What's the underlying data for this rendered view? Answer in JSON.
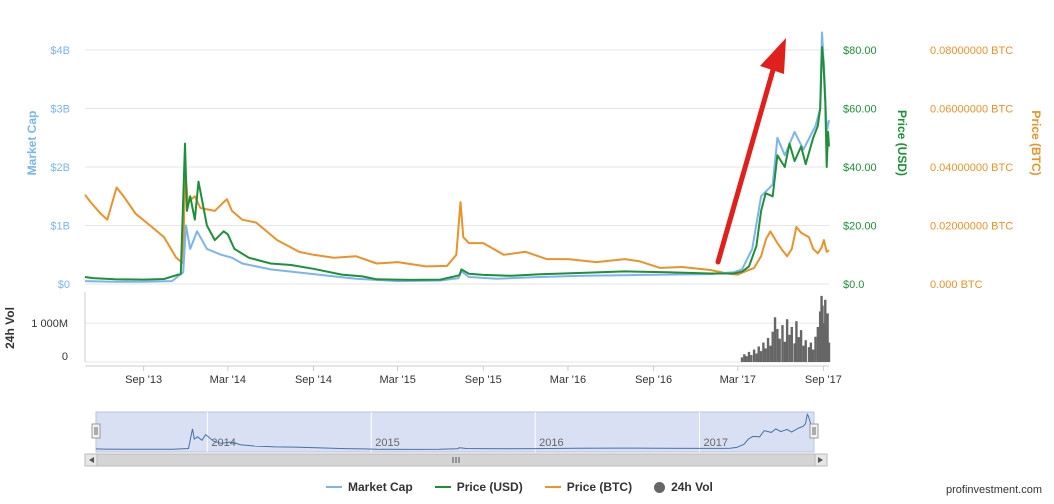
{
  "chart_data": {
    "type": "line",
    "x_ticks": [
      "Sep '13",
      "Mar '14",
      "Sep '14",
      "Mar '15",
      "Sep '15",
      "Mar '16",
      "Sep '16",
      "Mar '17",
      "Sep '17"
    ],
    "axes": {
      "market_cap": {
        "label": "Market Cap",
        "ticks": [
          "$0",
          "$1B",
          "$2B",
          "$3B",
          "$4B"
        ],
        "ylim": [
          0,
          4
        ],
        "unit": "B USD",
        "color": "#7cb5ec"
      },
      "price_usd": {
        "label": "Price (USD)",
        "ticks": [
          "$0.0",
          "$20.00",
          "$40.00",
          "$60.00",
          "$80.00"
        ],
        "ylim": [
          0,
          80
        ],
        "color": "#1f8f3a"
      },
      "price_btc": {
        "label": "Price (BTC)",
        "ticks": [
          "0.000 BTC",
          "0.02000000 BTC",
          "0.04000000 BTC",
          "0.06000000 BTC",
          "0.08000000 BTC"
        ],
        "ylim": [
          0,
          0.08
        ],
        "color": "#e8932b"
      },
      "volume": {
        "label": "24h Vol",
        "ticks": [
          "0",
          "1 000M"
        ],
        "ylim": [
          0,
          1800
        ],
        "unit": "M USD",
        "color": "#666666"
      }
    },
    "series": [
      {
        "name": "Market Cap",
        "color": "#7cb5ec",
        "points": [
          [
            "2013-04-28",
            0.05
          ],
          [
            "2013-07-01",
            0.04
          ],
          [
            "2013-09-01",
            0.04
          ],
          [
            "2013-11-01",
            0.05
          ],
          [
            "2013-11-25",
            0.2
          ],
          [
            "2013-12-01",
            1.0
          ],
          [
            "2013-12-10",
            0.6
          ],
          [
            "2013-12-25",
            0.9
          ],
          [
            "2014-01-15",
            0.6
          ],
          [
            "2014-02-15",
            0.5
          ],
          [
            "2014-03-10",
            0.45
          ],
          [
            "2014-04-01",
            0.35
          ],
          [
            "2014-06-01",
            0.25
          ],
          [
            "2014-09-01",
            0.17
          ],
          [
            "2014-12-01",
            0.09
          ],
          [
            "2015-03-01",
            0.05
          ],
          [
            "2015-06-01",
            0.06
          ],
          [
            "2015-07-10",
            0.1
          ],
          [
            "2015-07-15",
            0.22
          ],
          [
            "2015-08-01",
            0.12
          ],
          [
            "2015-10-01",
            0.09
          ],
          [
            "2016-01-01",
            0.12
          ],
          [
            "2016-04-01",
            0.14
          ],
          [
            "2016-07-01",
            0.15
          ],
          [
            "2016-10-01",
            0.16
          ],
          [
            "2017-01-01",
            0.17
          ],
          [
            "2017-02-20",
            0.2
          ],
          [
            "2017-03-10",
            0.25
          ],
          [
            "2017-04-01",
            0.6
          ],
          [
            "2017-04-20",
            1.5
          ],
          [
            "2017-05-15",
            1.7
          ],
          [
            "2017-05-25",
            2.5
          ],
          [
            "2017-06-10",
            2.2
          ],
          [
            "2017-07-01",
            2.6
          ],
          [
            "2017-07-20",
            2.3
          ],
          [
            "2017-08-15",
            2.7
          ],
          [
            "2017-08-25",
            3.0
          ],
          [
            "2017-08-29",
            4.3
          ],
          [
            "2017-09-03",
            3.6
          ],
          [
            "2017-09-08",
            2.6
          ],
          [
            "2017-09-13",
            2.8
          ]
        ]
      },
      {
        "name": "Price (USD)",
        "color": "#1f8f3a",
        "points": [
          [
            "2013-04-28",
            2.4
          ],
          [
            "2013-05-15",
            2.0
          ],
          [
            "2013-07-01",
            1.6
          ],
          [
            "2013-09-01",
            1.5
          ],
          [
            "2013-10-15",
            1.7
          ],
          [
            "2013-11-20",
            3.5
          ],
          [
            "2013-11-29",
            48
          ],
          [
            "2013-12-03",
            25
          ],
          [
            "2013-12-10",
            30
          ],
          [
            "2013-12-20",
            22
          ],
          [
            "2013-12-28",
            35
          ],
          [
            "2014-01-15",
            20
          ],
          [
            "2014-02-01",
            15
          ],
          [
            "2014-02-20",
            18
          ],
          [
            "2014-03-01",
            17
          ],
          [
            "2014-03-15",
            12
          ],
          [
            "2014-04-15",
            9
          ],
          [
            "2014-06-01",
            7
          ],
          [
            "2014-07-15",
            6.5
          ],
          [
            "2014-09-01",
            5.2
          ],
          [
            "2014-11-01",
            3.2
          ],
          [
            "2014-12-15",
            2.6
          ],
          [
            "2015-01-15",
            1.6
          ],
          [
            "2015-04-01",
            1.4
          ],
          [
            "2015-06-01",
            1.5
          ],
          [
            "2015-07-12",
            3
          ],
          [
            "2015-07-16",
            5
          ],
          [
            "2015-08-01",
            3.5
          ],
          [
            "2015-09-01",
            3.1
          ],
          [
            "2015-11-01",
            2.8
          ],
          [
            "2016-01-01",
            3.3
          ],
          [
            "2016-04-01",
            3.8
          ],
          [
            "2016-07-01",
            4.3
          ],
          [
            "2016-10-01",
            4.0
          ],
          [
            "2017-01-01",
            3.6
          ],
          [
            "2017-02-20",
            3.6
          ],
          [
            "2017-03-10",
            4.2
          ],
          [
            "2017-03-25",
            6
          ],
          [
            "2017-04-10",
            13
          ],
          [
            "2017-04-20",
            25
          ],
          [
            "2017-04-30",
            31
          ],
          [
            "2017-05-15",
            30
          ],
          [
            "2017-05-25",
            44
          ],
          [
            "2017-06-10",
            40
          ],
          [
            "2017-06-20",
            48
          ],
          [
            "2017-07-01",
            42
          ],
          [
            "2017-07-15",
            47
          ],
          [
            "2017-07-25",
            41
          ],
          [
            "2017-08-10",
            50
          ],
          [
            "2017-08-20",
            54
          ],
          [
            "2017-08-25",
            60
          ],
          [
            "2017-08-29",
            81
          ],
          [
            "2017-09-01",
            76
          ],
          [
            "2017-09-05",
            62
          ],
          [
            "2017-09-08",
            40
          ],
          [
            "2017-09-11",
            52
          ],
          [
            "2017-09-13",
            47
          ]
        ]
      },
      {
        "name": "Price (BTC)",
        "color": "#e8932b",
        "points": [
          [
            "2013-04-28",
            0.0305
          ],
          [
            "2013-05-10",
            0.028
          ],
          [
            "2013-06-01",
            0.024
          ],
          [
            "2013-06-15",
            0.022
          ],
          [
            "2013-07-05",
            0.033
          ],
          [
            "2013-07-20",
            0.03
          ],
          [
            "2013-08-15",
            0.024
          ],
          [
            "2013-09-15",
            0.02
          ],
          [
            "2013-10-15",
            0.016
          ],
          [
            "2013-11-10",
            0.009
          ],
          [
            "2013-11-25",
            0.007
          ],
          [
            "2013-11-29",
            0.04
          ],
          [
            "2013-12-05",
            0.028
          ],
          [
            "2013-12-20",
            0.03
          ],
          [
            "2014-01-01",
            0.026
          ],
          [
            "2014-02-01",
            0.025
          ],
          [
            "2014-02-20",
            0.028
          ],
          [
            "2014-02-27",
            0.029
          ],
          [
            "2014-03-10",
            0.025
          ],
          [
            "2014-04-01",
            0.022
          ],
          [
            "2014-05-01",
            0.021
          ],
          [
            "2014-06-15",
            0.015
          ],
          [
            "2014-08-01",
            0.011
          ],
          [
            "2014-09-01",
            0.01
          ],
          [
            "2014-10-15",
            0.009
          ],
          [
            "2014-12-01",
            0.0095
          ],
          [
            "2015-01-15",
            0.007
          ],
          [
            "2015-03-01",
            0.0075
          ],
          [
            "2015-05-01",
            0.006
          ],
          [
            "2015-06-15",
            0.0062
          ],
          [
            "2015-07-05",
            0.01
          ],
          [
            "2015-07-14",
            0.028
          ],
          [
            "2015-07-20",
            0.016
          ],
          [
            "2015-08-01",
            0.014
          ],
          [
            "2015-09-01",
            0.014
          ],
          [
            "2015-10-15",
            0.01
          ],
          [
            "2015-12-01",
            0.011
          ],
          [
            "2016-01-15",
            0.0085
          ],
          [
            "2016-03-01",
            0.0085
          ],
          [
            "2016-05-01",
            0.0075
          ],
          [
            "2016-07-01",
            0.0085
          ],
          [
            "2016-08-01",
            0.0078
          ],
          [
            "2016-09-15",
            0.0055
          ],
          [
            "2016-11-01",
            0.0058
          ],
          [
            "2017-01-01",
            0.0048
          ],
          [
            "2017-02-10",
            0.0035
          ],
          [
            "2017-03-01",
            0.0032
          ],
          [
            "2017-03-20",
            0.0045
          ],
          [
            "2017-04-05",
            0.0055
          ],
          [
            "2017-04-20",
            0.0095
          ],
          [
            "2017-05-01",
            0.0155
          ],
          [
            "2017-05-10",
            0.018
          ],
          [
            "2017-05-25",
            0.014
          ],
          [
            "2017-06-05",
            0.0115
          ],
          [
            "2017-06-15",
            0.0095
          ],
          [
            "2017-06-25",
            0.012
          ],
          [
            "2017-07-05",
            0.0195
          ],
          [
            "2017-07-15",
            0.0175
          ],
          [
            "2017-08-01",
            0.016
          ],
          [
            "2017-08-10",
            0.012
          ],
          [
            "2017-08-20",
            0.0105
          ],
          [
            "2017-08-28",
            0.0125
          ],
          [
            "2017-09-02",
            0.015
          ],
          [
            "2017-09-08",
            0.011
          ],
          [
            "2017-09-13",
            0.0115
          ]
        ]
      },
      {
        "name": "24h Vol",
        "color": "#666666",
        "type": "column",
        "points": [
          [
            "2017-03-10",
            120
          ],
          [
            "2017-03-15",
            200
          ],
          [
            "2017-03-20",
            150
          ],
          [
            "2017-03-25",
            260
          ],
          [
            "2017-03-30",
            180
          ],
          [
            "2017-04-05",
            320
          ],
          [
            "2017-04-10",
            220
          ],
          [
            "2017-04-15",
            400
          ],
          [
            "2017-04-20",
            280
          ],
          [
            "2017-04-25",
            500
          ],
          [
            "2017-04-30",
            350
          ],
          [
            "2017-05-05",
            620
          ],
          [
            "2017-05-10",
            420
          ],
          [
            "2017-05-15",
            780
          ],
          [
            "2017-05-20",
            1150
          ],
          [
            "2017-05-25",
            850
          ],
          [
            "2017-05-30",
            600
          ],
          [
            "2017-06-05",
            950
          ],
          [
            "2017-06-10",
            520
          ],
          [
            "2017-06-15",
            1100
          ],
          [
            "2017-06-20",
            700
          ],
          [
            "2017-06-25",
            900
          ],
          [
            "2017-07-01",
            480
          ],
          [
            "2017-07-05",
            1050
          ],
          [
            "2017-07-10",
            640
          ],
          [
            "2017-07-15",
            820
          ],
          [
            "2017-07-20",
            420
          ],
          [
            "2017-07-25",
            560
          ],
          [
            "2017-08-01",
            380
          ],
          [
            "2017-08-05",
            500
          ],
          [
            "2017-08-10",
            320
          ],
          [
            "2017-08-15",
            650
          ],
          [
            "2017-08-20",
            900
          ],
          [
            "2017-08-25",
            1300
          ],
          [
            "2017-08-28",
            1700
          ],
          [
            "2017-08-30",
            1450
          ],
          [
            "2017-09-02",
            1000
          ],
          [
            "2017-09-05",
            1600
          ],
          [
            "2017-09-08",
            700
          ],
          [
            "2017-09-10",
            1250
          ],
          [
            "2017-09-13",
            500
          ]
        ]
      }
    ],
    "annotation": {
      "type": "arrow",
      "color": "#e0201c"
    },
    "navigator": {
      "years": [
        "2014",
        "2015",
        "2016",
        "2017"
      ]
    },
    "legend": {
      "position": "bottom",
      "items": [
        "Market Cap",
        "Price (USD)",
        "Price (BTC)",
        "24h Vol"
      ]
    }
  },
  "legend": {
    "market_cap": "Market Cap",
    "price_usd": "Price (USD)",
    "price_btc": "Price (BTC)",
    "volume": "24h Vol",
    "colors": {
      "market_cap": "#7cb5ec",
      "price_usd": "#1f8f3a",
      "price_btc": "#e8932b",
      "volume": "#666666"
    }
  },
  "watermark": "profinvestment.com"
}
